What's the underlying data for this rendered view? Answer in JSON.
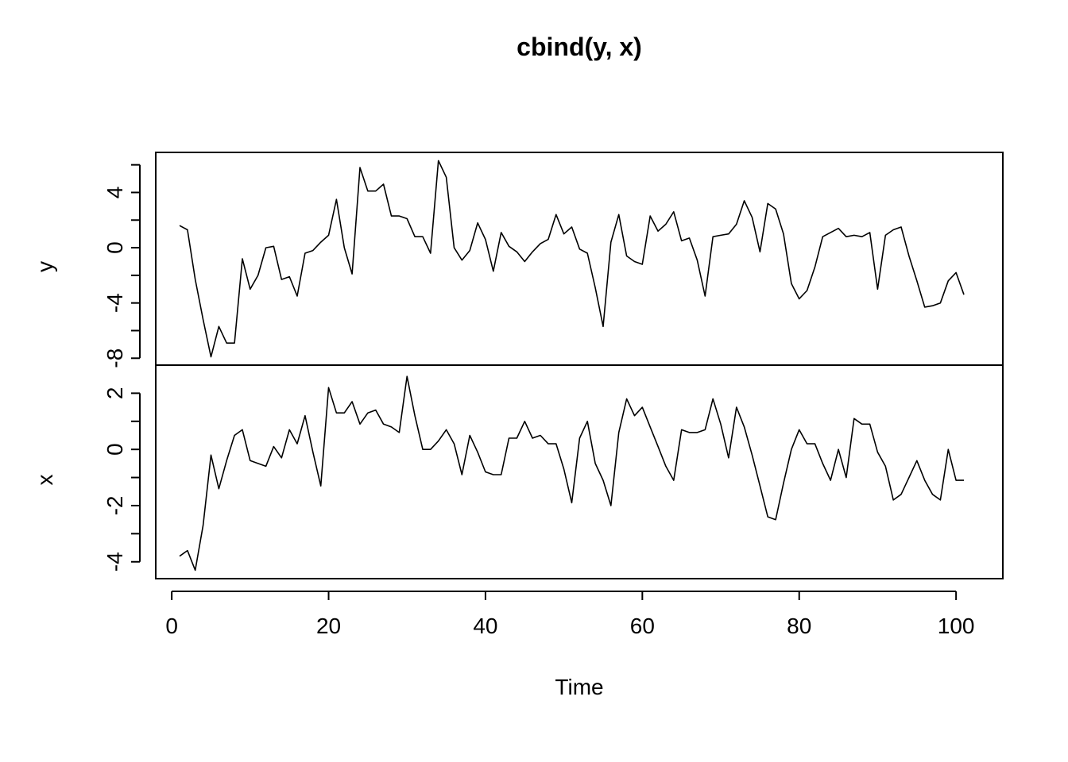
{
  "title": "cbind(y, x)",
  "xlabel": "Time",
  "chart_data": {
    "type": "line",
    "title": "cbind(y, x)",
    "xlabel": "Time",
    "x_start": 1,
    "x_end": 101,
    "xlim": [
      1,
      101
    ],
    "x_ticks": [
      0,
      20,
      40,
      60,
      80,
      100
    ],
    "grid": false,
    "legend": "none",
    "panels": [
      {
        "name": "y",
        "ylabel": "y",
        "ylim": [
          -8.5,
          6.9
        ],
        "y_ticks": [
          -8,
          -6,
          -4,
          -2,
          0,
          2,
          4,
          6
        ],
        "y_tick_labels": [
          "-8",
          "",
          "-4",
          "",
          "0",
          "",
          "4",
          ""
        ],
        "values": [
          1.6,
          1.3,
          -2.3,
          -5.2,
          -7.9,
          -5.7,
          -6.9,
          -6.9,
          -0.8,
          -3.0,
          -2.0,
          0.0,
          0.1,
          -2.3,
          -2.1,
          -3.5,
          -0.4,
          -0.2,
          0.4,
          0.9,
          3.5,
          0.0,
          -1.9,
          5.8,
          4.1,
          4.1,
          4.6,
          2.3,
          2.3,
          2.1,
          0.8,
          0.8,
          -0.4,
          6.3,
          5.1,
          0.0,
          -0.9,
          -0.2,
          1.8,
          0.6,
          -1.7,
          1.1,
          0.1,
          -0.3,
          -1.0,
          -0.3,
          0.3,
          0.6,
          2.4,
          1.0,
          1.5,
          -0.1,
          -0.4,
          -2.9,
          -5.7,
          0.4,
          2.4,
          -0.6,
          -1.0,
          -1.2,
          2.3,
          1.2,
          1.7,
          2.6,
          0.5,
          0.7,
          -0.9,
          -3.5,
          0.8,
          0.9,
          1.0,
          1.7,
          3.4,
          2.2,
          -0.3,
          3.2,
          2.8,
          1.0,
          -2.6,
          -3.7,
          -3.1,
          -1.4,
          0.8,
          1.1,
          1.4,
          0.8,
          0.9,
          0.8,
          1.1,
          -3.0,
          0.9,
          1.3,
          1.5,
          -0.6,
          -2.4,
          -4.3,
          -4.2,
          -4.0,
          -2.4,
          -1.8,
          -3.4
        ]
      },
      {
        "name": "x",
        "ylabel": "x",
        "ylim": [
          -4.6,
          3.0
        ],
        "y_ticks": [
          -4,
          -3,
          -2,
          -1,
          0,
          1,
          2
        ],
        "y_tick_labels": [
          "-4",
          "",
          "-2",
          "",
          "0",
          "",
          "2"
        ],
        "values": [
          -3.8,
          -3.6,
          -4.3,
          -2.7,
          -0.2,
          -1.4,
          -0.4,
          0.5,
          0.7,
          -0.4,
          -0.5,
          -0.6,
          0.1,
          -0.3,
          0.7,
          0.2,
          1.2,
          -0.1,
          -1.3,
          2.2,
          1.3,
          1.3,
          1.7,
          0.9,
          1.3,
          1.4,
          0.9,
          0.8,
          0.6,
          2.6,
          1.2,
          0.0,
          0.0,
          0.3,
          0.7,
          0.2,
          -0.9,
          0.5,
          -0.1,
          -0.8,
          -0.9,
          -0.9,
          0.4,
          0.4,
          1.0,
          0.4,
          0.5,
          0.2,
          0.2,
          -0.7,
          -1.9,
          0.4,
          1.0,
          -0.5,
          -1.1,
          -2.0,
          0.6,
          1.8,
          1.2,
          1.5,
          0.8,
          0.1,
          -0.6,
          -1.1,
          0.7,
          0.6,
          0.6,
          0.7,
          1.8,
          0.9,
          -0.3,
          1.5,
          0.8,
          -0.2,
          -1.3,
          -2.4,
          -2.5,
          -1.2,
          0.0,
          0.7,
          0.2,
          0.2,
          -0.5,
          -1.1,
          0.0,
          -1.0,
          1.1,
          0.9,
          0.9,
          -0.1,
          -0.6,
          -1.8,
          -1.6,
          -1.0,
          -0.4,
          -1.1,
          -1.6,
          -1.8,
          0.0,
          -1.1,
          -1.1
        ]
      }
    ]
  }
}
